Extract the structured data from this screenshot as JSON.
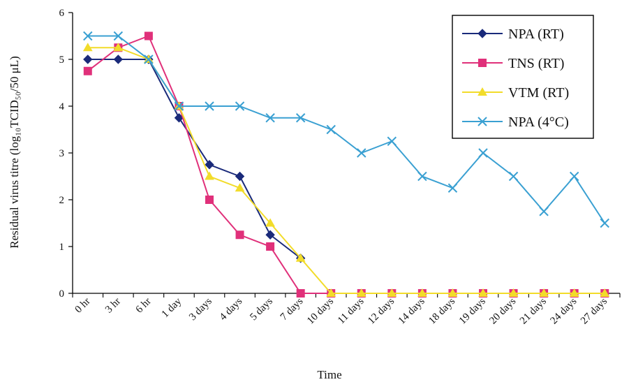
{
  "chart_data": {
    "type": "line",
    "title": "",
    "xlabel": "Time",
    "ylabel": "Residual virus titre (log₁₀TCID₅₀/50 μL)",
    "ylim": [
      0,
      6
    ],
    "yticks": [
      0,
      1,
      2,
      3,
      4,
      5,
      6
    ],
    "grid": false,
    "legend_position": "top-right",
    "categories": [
      "0 hr",
      "3 hr",
      "6 hr",
      "1 day",
      "3 days",
      "4 days",
      "5 days",
      "7 days",
      "10 days",
      "11 days",
      "12 days",
      "14 days",
      "18 days",
      "19 days",
      "20 days",
      "21 days",
      "24 days",
      "27 days"
    ],
    "series": [
      {
        "name": "NPA (RT)",
        "color": "#1a2a7a",
        "marker": "diamond",
        "values": [
          5.0,
          5.0,
          5.0,
          3.75,
          2.75,
          2.5,
          1.25,
          0.75,
          null,
          null,
          null,
          null,
          null,
          null,
          null,
          null,
          null,
          null
        ]
      },
      {
        "name": "TNS (RT)",
        "color": "#e0307a",
        "marker": "square",
        "values": [
          4.75,
          5.25,
          5.5,
          4.0,
          2.0,
          1.25,
          1.0,
          0.0,
          0.0,
          0.0,
          0.0,
          0.0,
          0.0,
          0.0,
          0.0,
          0.0,
          0.0,
          0.0
        ]
      },
      {
        "name": "VTM (RT)",
        "color": "#f2dc2a",
        "marker": "triangle",
        "values": [
          5.25,
          5.25,
          5.0,
          4.0,
          2.5,
          2.25,
          1.5,
          0.75,
          0.0,
          0.0,
          0.0,
          0.0,
          0.0,
          0.0,
          0.0,
          0.0,
          0.0,
          0.0
        ]
      },
      {
        "name": "NPA (4°C)",
        "color": "#3aa0d2",
        "marker": "x",
        "values": [
          5.5,
          5.5,
          5.0,
          4.0,
          4.0,
          4.0,
          3.75,
          3.75,
          3.5,
          3.0,
          3.25,
          2.5,
          2.25,
          3.0,
          2.5,
          1.75,
          2.5,
          1.5
        ]
      }
    ]
  }
}
